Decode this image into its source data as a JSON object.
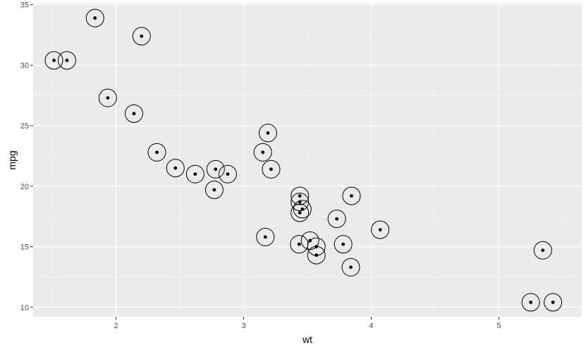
{
  "chart_data": {
    "type": "scatter",
    "xlabel": "wt",
    "ylabel": "mpg",
    "xlim": [
      1.35,
      5.65
    ],
    "ylim": [
      9.2,
      35.1
    ],
    "x_ticks": [
      2,
      3,
      4,
      5
    ],
    "x_tick_labels": [
      "2",
      "3",
      "4",
      "5"
    ],
    "y_ticks": [
      10,
      15,
      20,
      25,
      30,
      35
    ],
    "y_tick_labels": [
      "10",
      "15",
      "20",
      "25",
      "30",
      "35"
    ],
    "grid": true,
    "legend": "none",
    "marker": "point with open circle overlay",
    "colors": {
      "panel_background": "#ebebeb",
      "grid_major": "#ffffff",
      "grid_minor": "#f5f5f5",
      "points": "#000000",
      "tick_labels": "#4d4d4d"
    },
    "points": [
      {
        "x": 2.62,
        "y": 21.0
      },
      {
        "x": 2.875,
        "y": 21.0
      },
      {
        "x": 2.32,
        "y": 22.8
      },
      {
        "x": 3.215,
        "y": 21.4
      },
      {
        "x": 3.44,
        "y": 18.7
      },
      {
        "x": 3.46,
        "y": 18.1
      },
      {
        "x": 3.57,
        "y": 14.3
      },
      {
        "x": 3.19,
        "y": 24.4
      },
      {
        "x": 3.15,
        "y": 22.8
      },
      {
        "x": 3.44,
        "y": 19.2
      },
      {
        "x": 3.44,
        "y": 17.8
      },
      {
        "x": 4.07,
        "y": 16.4
      },
      {
        "x": 3.73,
        "y": 17.3
      },
      {
        "x": 3.78,
        "y": 15.2
      },
      {
        "x": 5.25,
        "y": 10.4
      },
      {
        "x": 5.424,
        "y": 10.4
      },
      {
        "x": 5.345,
        "y": 14.7
      },
      {
        "x": 2.2,
        "y": 32.4
      },
      {
        "x": 1.615,
        "y": 30.4
      },
      {
        "x": 1.835,
        "y": 33.9
      },
      {
        "x": 2.465,
        "y": 21.5
      },
      {
        "x": 3.52,
        "y": 15.5
      },
      {
        "x": 3.435,
        "y": 15.2
      },
      {
        "x": 3.84,
        "y": 13.3
      },
      {
        "x": 3.845,
        "y": 19.2
      },
      {
        "x": 1.935,
        "y": 27.3
      },
      {
        "x": 2.14,
        "y": 26.0
      },
      {
        "x": 1.513,
        "y": 30.4
      },
      {
        "x": 3.17,
        "y": 15.8
      },
      {
        "x": 2.77,
        "y": 19.7
      },
      {
        "x": 3.57,
        "y": 15.0
      },
      {
        "x": 2.78,
        "y": 21.4
      }
    ]
  }
}
